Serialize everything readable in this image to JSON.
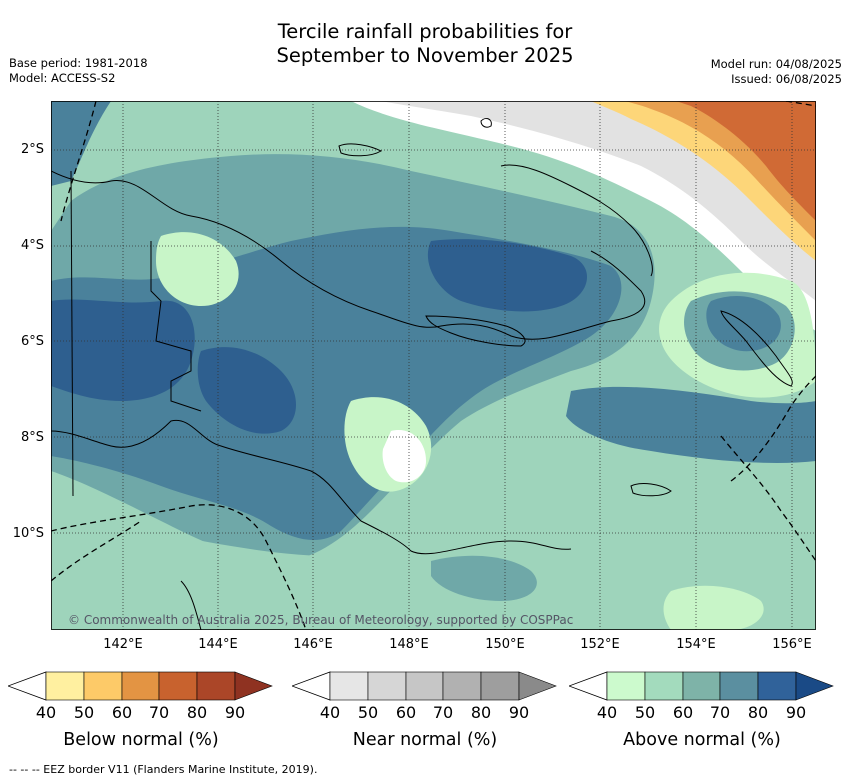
{
  "title": {
    "line1": "Tercile rainfall probabilities for",
    "line2": "September to November 2025"
  },
  "meta": {
    "base_period": "Base period: 1981-2018",
    "model": "Model: ACCESS-S2",
    "model_run": "Model run: 04/08/2025",
    "issued": "Issued: 06/08/2025"
  },
  "map": {
    "lat_labels": [
      "2°S",
      "4°S",
      "6°S",
      "8°S",
      "10°S"
    ],
    "lon_labels": [
      "142°E",
      "144°E",
      "146°E",
      "148°E",
      "150°E",
      "152°E",
      "154°E",
      "156°E"
    ],
    "copyright": "© Commonwealth of Australia 2025, Bureau of Meteorology, supported by COSPPac",
    "colors": {
      "above_40": "#ffffff",
      "above_50": "#c8f5c8",
      "above_60": "#9ed4bb",
      "above_70": "#6fa8a8",
      "above_80": "#4a819b",
      "above_90": "#2e5f8f",
      "near": "#e2e2e2",
      "below_50": "#fdd679",
      "below_60": "#e8a050",
      "below_70": "#d06a35"
    }
  },
  "legends": [
    {
      "caption": "Below normal (%)",
      "ticks": [
        "40",
        "50",
        "60",
        "70",
        "80",
        "90"
      ],
      "colors": [
        "#fff0a0",
        "#fdca68",
        "#e39443",
        "#c8622e",
        "#ab4628",
        "#8f3221"
      ]
    },
    {
      "caption": "Near normal (%)",
      "ticks": [
        "40",
        "50",
        "60",
        "70",
        "80",
        "90"
      ],
      "colors": [
        "#e6e6e6",
        "#d6d6d6",
        "#c6c6c6",
        "#b1b1b1",
        "#9e9e9e",
        "#8a8a8a"
      ]
    },
    {
      "caption": "Above normal (%)",
      "ticks": [
        "40",
        "50",
        "60",
        "70",
        "80",
        "90"
      ],
      "colors": [
        "#ccfacd",
        "#a3dbbd",
        "#7eb3a8",
        "#5b8fa0",
        "#30629a",
        "#1a4a86"
      ]
    }
  ],
  "footnote": "--  --  -- EEZ border V11 (Flanders Marine Institute, 2019)."
}
